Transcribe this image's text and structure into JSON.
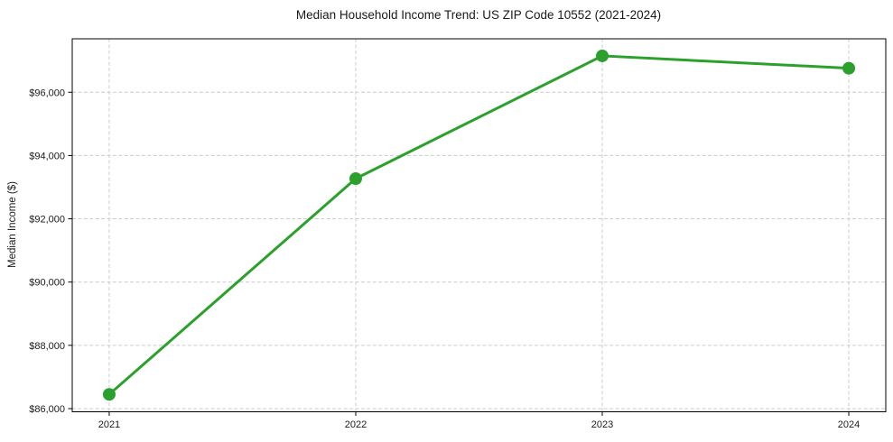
{
  "chart_data": {
    "type": "line",
    "title": "Median Household Income Trend: US ZIP Code 10552 (2021-2024)",
    "xlabel": "",
    "ylabel": "Median Income ($)",
    "x": [
      2021,
      2022,
      2023,
      2024
    ],
    "x_tick_labels": [
      "2021",
      "2022",
      "2023",
      "2024"
    ],
    "series": [
      {
        "name": "Median Household Income",
        "values": [
          86450,
          93270,
          97150,
          96760
        ],
        "color": "#2ca02c",
        "marker": "circle"
      }
    ],
    "y_ticks": [
      86000,
      88000,
      90000,
      92000,
      94000,
      96000
    ],
    "y_tick_labels": [
      "$86,000",
      "$88,000",
      "$90,000",
      "$92,000",
      "$94,000",
      "$96,000"
    ],
    "ylim": [
      85900,
      97690
    ],
    "xlim": [
      2020.85,
      2024.15
    ],
    "grid": true,
    "grid_style": "dashed",
    "grid_color": "#cccccc",
    "spine_color": "#000000",
    "text_color": "#1a1a1a",
    "background_color": "#ffffff",
    "legend": "none"
  }
}
